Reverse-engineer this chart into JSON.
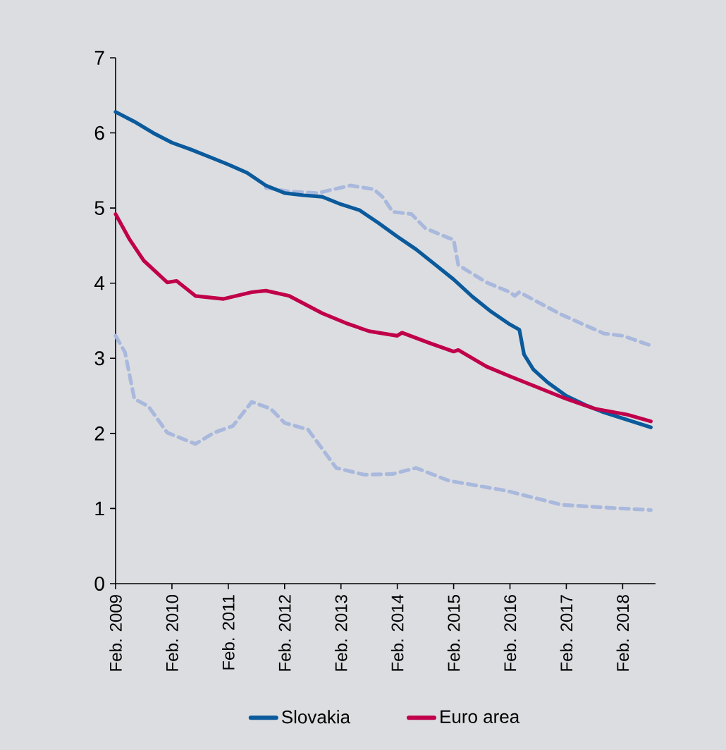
{
  "chart_data": {
    "type": "line",
    "legend": "bottom",
    "xlim": [
      "2009-02",
      "2018-09"
    ],
    "ylim": [
      0,
      7
    ],
    "yticks": [
      0,
      1,
      2,
      3,
      4,
      5,
      6,
      7
    ],
    "xticks": [
      {
        "value": "2009-02",
        "label": "Feb. 2009"
      },
      {
        "value": "2010-02",
        "label": "Feb. 2010"
      },
      {
        "value": "2011-02",
        "label": "Feb. 2011"
      },
      {
        "value": "2012-02",
        "label": "Feb. 2012"
      },
      {
        "value": "2013-02",
        "label": "Feb. 2013"
      },
      {
        "value": "2014-02",
        "label": "Feb. 2014"
      },
      {
        "value": "2015-02",
        "label": "Feb. 2015"
      },
      {
        "value": "2016-02",
        "label": "Feb. 2016"
      },
      {
        "value": "2017-02",
        "label": "Feb. 2017"
      },
      {
        "value": "2018-02",
        "label": "Feb. 2018"
      }
    ],
    "series": [
      {
        "color": "#a9b8dd",
        "line_style": "dashed",
        "x": [
          "2011-10",
          "2012-03",
          "2012-09",
          "2013-04",
          "2013-09",
          "2013-11",
          "2014-01",
          "2014-05",
          "2014-08",
          "2015-01",
          "2015-02",
          "2015-03",
          "2015-09",
          "2016-02",
          "2016-03",
          "2016-04",
          "2017-01",
          "2017-10",
          "2018-02",
          "2018-08"
        ],
        "values": [
          5.27,
          5.22,
          5.2,
          5.3,
          5.25,
          5.14,
          4.95,
          4.92,
          4.73,
          4.6,
          4.58,
          4.24,
          4.01,
          3.88,
          3.83,
          3.88,
          3.58,
          3.33,
          3.3,
          3.17
        ]
      },
      {
        "color": "#a9b8dd",
        "line_style": "dashed",
        "x": [
          "2009-02",
          "2009-04",
          "2009-06",
          "2009-09",
          "2010-01",
          "2010-07",
          "2010-11",
          "2011-03",
          "2011-07",
          "2011-11",
          "2012-02",
          "2012-07",
          "2013-01",
          "2013-07",
          "2014-01",
          "2014-06",
          "2015-01",
          "2016-01",
          "2017-01",
          "2017-11",
          "2018-08"
        ],
        "values": [
          3.3,
          3.08,
          2.46,
          2.36,
          2.01,
          1.86,
          2.01,
          2.1,
          2.42,
          2.33,
          2.14,
          2.05,
          1.54,
          1.45,
          1.46,
          1.54,
          1.37,
          1.24,
          1.05,
          1.01,
          0.98
        ]
      },
      {
        "name": "Slovakia",
        "color": "#0a5a9c",
        "line_style": "solid",
        "x": [
          "2009-02",
          "2009-06",
          "2009-10",
          "2010-02",
          "2010-06",
          "2010-10",
          "2011-02",
          "2011-06",
          "2011-10",
          "2012-02",
          "2012-06",
          "2012-10",
          "2013-02",
          "2013-06",
          "2013-10",
          "2014-02",
          "2014-06",
          "2014-10",
          "2015-02",
          "2015-06",
          "2015-10",
          "2016-02",
          "2016-04",
          "2016-05",
          "2016-07",
          "2016-10",
          "2017-02",
          "2017-06",
          "2017-10",
          "2018-02",
          "2018-06",
          "2018-08"
        ],
        "values": [
          6.28,
          6.15,
          6.0,
          5.87,
          5.78,
          5.68,
          5.58,
          5.47,
          5.3,
          5.2,
          5.17,
          5.15,
          5.05,
          4.97,
          4.8,
          4.62,
          4.45,
          4.25,
          4.05,
          3.82,
          3.62,
          3.45,
          3.38,
          3.05,
          2.85,
          2.68,
          2.5,
          2.38,
          2.28,
          2.2,
          2.12,
          2.08
        ]
      },
      {
        "name": "Euro area",
        "color": "#c0004a",
        "line_style": "solid",
        "x": [
          "2009-02",
          "2009-05",
          "2009-08",
          "2010-01",
          "2010-03",
          "2010-07",
          "2011-01",
          "2011-07",
          "2011-10",
          "2012-03",
          "2012-10",
          "2013-03",
          "2013-08",
          "2014-02",
          "2014-03",
          "2014-09",
          "2015-02",
          "2015-03",
          "2015-09",
          "2016-02",
          "2016-08",
          "2017-02",
          "2017-08",
          "2018-03",
          "2018-08"
        ],
        "values": [
          4.92,
          4.58,
          4.3,
          4.01,
          4.03,
          3.83,
          3.79,
          3.88,
          3.9,
          3.83,
          3.6,
          3.47,
          3.36,
          3.3,
          3.34,
          3.2,
          3.09,
          3.11,
          2.89,
          2.76,
          2.61,
          2.46,
          2.33,
          2.25,
          2.16
        ]
      }
    ]
  }
}
